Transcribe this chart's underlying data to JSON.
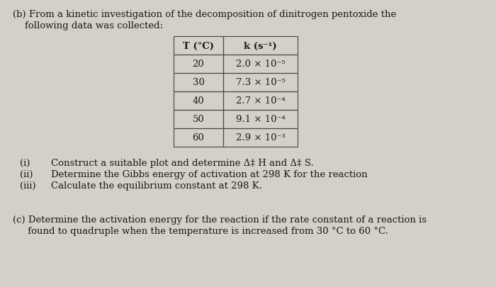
{
  "background_color": "#d4d0c8",
  "title_line1": "(b) From a kinetic investigation of the decomposition of dinitrogen pentoxide the",
  "title_line2": "    following data was collected:",
  "table_headers": [
    "T (°C)",
    "k (s⁻¹)"
  ],
  "table_rows": [
    [
      "20",
      "2.0 × 10⁻⁵"
    ],
    [
      "30",
      "7.3 × 10⁻⁵"
    ],
    [
      "40",
      "2.7 × 10⁻⁴"
    ],
    [
      "50",
      "9.1 × 10⁻⁴"
    ],
    [
      "60",
      "2.9 × 10⁻³"
    ]
  ],
  "items": [
    [
      "(i)",
      "Construct a suitable plot and determine Δ‡ H and Δ‡ S."
    ],
    [
      "(ii)",
      "Determine the Gibbs energy of activation at 298 K for the reaction"
    ],
    [
      "(iii)",
      "Calculate the equilibrium constant at 298 K."
    ]
  ],
  "part_c_line1": "(c) Determine the activation energy for the reaction if the rate constant of a reaction is",
  "part_c_line2": "     found to quadruple when the temperature is increased from 30 °C to 60 °C.",
  "font_size_body": 9.5,
  "font_size_table": 9.5,
  "text_color": "#1a1a1a"
}
